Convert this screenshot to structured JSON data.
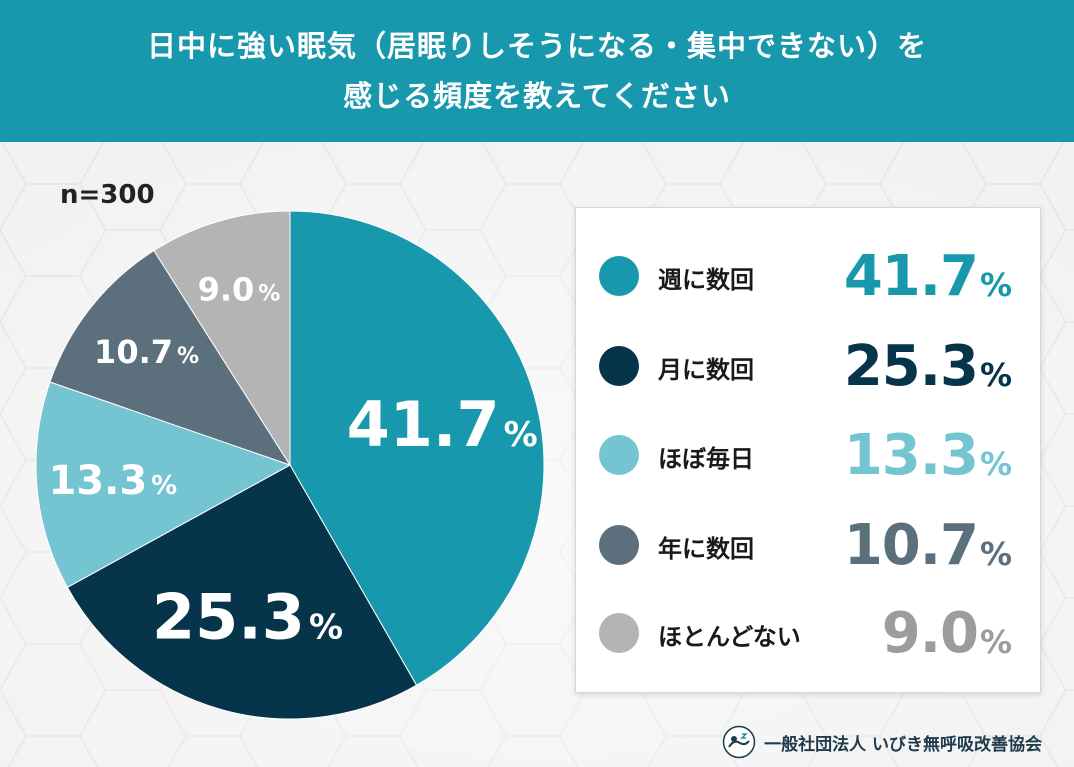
{
  "header": {
    "line1": "日中に強い眠気（居眠りしそうになる・集中できない）を",
    "line2": "感じる頻度を教えてください"
  },
  "sample_size": "n=300",
  "chart_data": {
    "type": "pie",
    "title": "日中に強い眠気（居眠りしそうになる・集中できない）を感じる頻度を教えてください",
    "n": 300,
    "unit": "%",
    "start": "12 o'clock",
    "direction": "clockwise",
    "slices": [
      {
        "label": "週に数回",
        "value": 41.7,
        "display": "41.7",
        "color": "#1898ad",
        "label_size": "large"
      },
      {
        "label": "月に数回",
        "value": 25.3,
        "display": "25.3",
        "color": "#05344b",
        "label_size": "large"
      },
      {
        "label": "ほぼ毎日",
        "value": 13.3,
        "display": "13.3",
        "color": "#74c4d2",
        "label_size": "medium"
      },
      {
        "label": "年に数回",
        "value": 10.7,
        "display": "10.7",
        "color": "#5b6f7c",
        "label_size": "small"
      },
      {
        "label": "ほとんどない",
        "value": 9.0,
        "display": "9.0",
        "color": "#b4b4b4",
        "label_size": "small"
      }
    ]
  },
  "legend": {
    "value_colors": [
      "#1898ad",
      "#05344b",
      "#74c4d2",
      "#5b6f7c",
      "#9c9c9c"
    ],
    "pct_symbol": "%"
  },
  "footer": {
    "org": "一般社団法人 いびき無呼吸改善協会",
    "logo_icon": "sleeping-person-icon"
  }
}
